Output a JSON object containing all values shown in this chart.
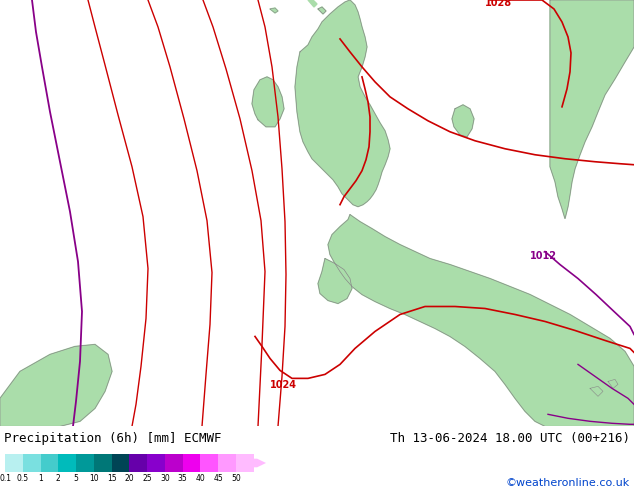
{
  "title_left": "Precipitation (6h) [mm] ECMWF",
  "title_right": "Th 13-06-2024 18.00 UTC (00+216)",
  "credit": "©weatheronline.co.uk",
  "colorbar_levels": [
    "0.1",
    "0.5",
    "1",
    "2",
    "5",
    "10",
    "15",
    "20",
    "25",
    "30",
    "35",
    "40",
    "45",
    "50"
  ],
  "colorbar_colors": [
    "#b8f0f0",
    "#7ae0e0",
    "#44cccc",
    "#00bbbb",
    "#009999",
    "#007777",
    "#004455",
    "#6600aa",
    "#8800cc",
    "#bb00cc",
    "#ee00ee",
    "#ff55ff",
    "#ff99ff",
    "#ffbbff"
  ],
  "land_color": "#aaddaa",
  "sea_color": "#dcdcdc",
  "border_color": "#888888",
  "slp_color_red": "#cc0000",
  "slp_color_purple": "#880088",
  "font_size_title": 9,
  "font_size_credit": 8
}
